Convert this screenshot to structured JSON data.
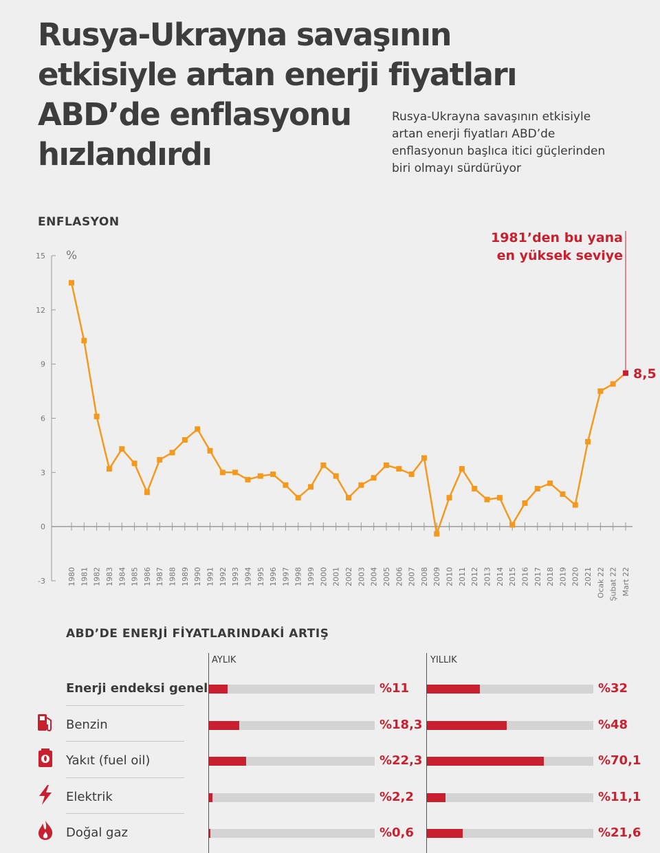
{
  "title": {
    "lines": [
      "Rusya-Ukrayna savaşının",
      "etkisiyle artan enerji fiyatları",
      "ABD’de enflasyonu",
      "hızlandırdı"
    ]
  },
  "subtitle": {
    "lines": [
      "Rusya-Ukrayna savaşının etkisiyle",
      "artan enerji fiyatları ABD’de",
      "enflasyonun başlıca itici güçlerinden",
      "biri olmayı sürdürüyor"
    ]
  },
  "inflation_label": "ENFLASYON",
  "energy_label": "ABD’DE ENERJİ FİYATLARINDAKİ ARTIŞ",
  "colors": {
    "line": "#f39a1e",
    "accent": "#c8202f",
    "bar_track": "#d4d4d4",
    "axis": "#9a9a9a"
  },
  "chart_data": [
    {
      "type": "line",
      "ylabel": "%",
      "ylim": [
        -3,
        15
      ],
      "yticks": [
        -3,
        0,
        3,
        6,
        9,
        12,
        15
      ],
      "grid": false,
      "categories": [
        "1980",
        "1981",
        "1982",
        "1983",
        "1984",
        "1985",
        "1986",
        "1987",
        "1988",
        "1989",
        "1990",
        "1991",
        "1992",
        "1993",
        "1994",
        "1995",
        "1996",
        "1997",
        "1998",
        "1999",
        "2000",
        "2001",
        "2002",
        "2003",
        "2004",
        "2005",
        "2006",
        "2007",
        "2008",
        "2009",
        "2010",
        "2011",
        "2012",
        "2013",
        "2014",
        "2015",
        "2016",
        "2017",
        "2018",
        "2019",
        "2020",
        "2021",
        "Ocak 22",
        "Şubat 22",
        "Mart 22"
      ],
      "values": [
        13.5,
        10.3,
        6.1,
        3.2,
        4.3,
        3.5,
        1.9,
        3.7,
        4.1,
        4.8,
        5.4,
        4.2,
        3.0,
        3.0,
        2.6,
        2.8,
        2.9,
        2.3,
        1.6,
        2.2,
        3.4,
        2.8,
        1.6,
        2.3,
        2.7,
        3.4,
        3.2,
        2.9,
        3.8,
        -0.4,
        1.6,
        3.2,
        2.1,
        1.5,
        1.6,
        0.1,
        1.3,
        2.1,
        2.4,
        1.8,
        1.2,
        4.7,
        7.5,
        7.9,
        8.5
      ],
      "annotation": {
        "lines": [
          "1981’den bu yana",
          "en yüksek seviye"
        ],
        "value_label": "8,5"
      }
    },
    {
      "type": "bar",
      "title": "ABD’DE ENERJİ FİYATLARINDAKİ ARTIŞ",
      "categories": [
        "Enerji endeksi genel",
        "Benzin",
        "Yakıt (fuel oil)",
        "Elektrik",
        "Doğal gaz"
      ],
      "series": [
        {
          "name": "AYLIK",
          "values": [
            11,
            18.3,
            22.3,
            2.2,
            0.6
          ],
          "labels": [
            "%11",
            "%18,3",
            "%22,3",
            "%2,2",
            "%0,6"
          ]
        },
        {
          "name": "YILLIK",
          "values": [
            32,
            48,
            70.1,
            11.1,
            21.6
          ],
          "labels": [
            "%32",
            "%48",
            "%70,1",
            "%11,1",
            "%21,6"
          ]
        }
      ],
      "xlim": [
        0,
        100
      ]
    }
  ],
  "energy_rows": [
    {
      "label": "Enerji endeksi genel",
      "icon": "",
      "bold": true
    },
    {
      "label": "Benzin",
      "icon": "fuel-pump-icon",
      "bold": false
    },
    {
      "label": "Yakıt (fuel oil)",
      "icon": "fuel-barrel-icon",
      "bold": false
    },
    {
      "label": "Elektrik",
      "icon": "lightning-icon",
      "bold": false
    },
    {
      "label": "Doğal gaz",
      "icon": "flame-icon",
      "bold": false
    }
  ]
}
